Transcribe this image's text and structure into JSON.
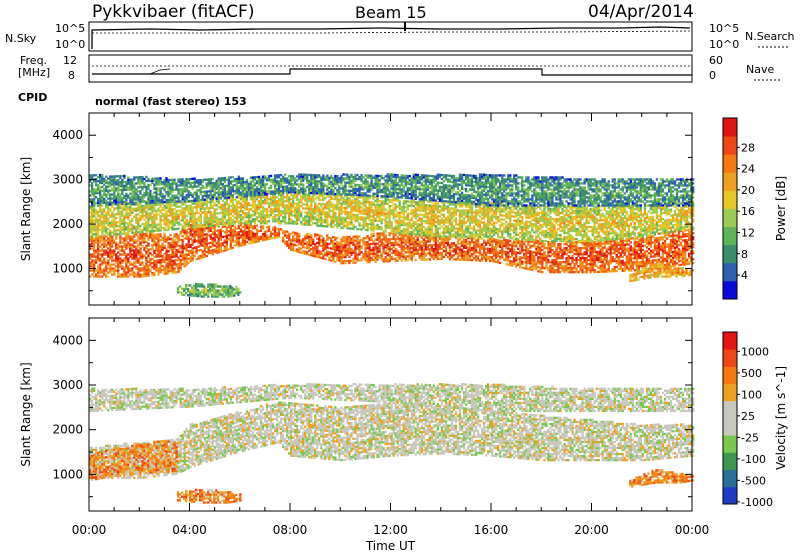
{
  "header": {
    "radar": "Pykkvibaer (fitACF)",
    "beam": "Beam 15",
    "date": "04/Apr/2014"
  },
  "panels": {
    "nsky_label": "N.Sky",
    "nsearch_label": "N.Search",
    "nsky_ticks": [
      "10^5",
      "10^0"
    ],
    "nsearch_ticks": [
      "10^5",
      "10^0"
    ],
    "freq_label_1": "Freq.",
    "freq_label_2": "[MHz]",
    "freq_ticks": [
      "12",
      "8"
    ],
    "nave_label": "Nave",
    "nave_ticks": [
      "60",
      "0"
    ],
    "cpid_label": "CPID",
    "mode_text": "normal (fast stereo) 153"
  },
  "chart_data": [
    {
      "type": "heatmap",
      "name": "power",
      "ylabel": "Slant Range [km]",
      "yticks": [
        "4000",
        "3000",
        "2000",
        "1000"
      ],
      "ylim": [
        180,
        4500
      ],
      "colorbar_label": "Power [dB]",
      "colorbar_ticks": [
        "28",
        "24",
        "20",
        "16",
        "12",
        "8",
        "4"
      ],
      "colorbar_colors": [
        "#0a0adc",
        "#2d5fb4",
        "#3c8c6e",
        "#5fb45a",
        "#9ccc50",
        "#e6c828",
        "#f0a020",
        "#f57814",
        "#f04614",
        "#e01414"
      ],
      "echo_bands": [
        {
          "t": [
            0,
            2,
            3.5,
            4,
            6,
            7.5,
            8,
            10,
            12,
            14,
            16,
            18,
            20,
            22,
            24
          ],
          "lower": [
            800,
            800,
            900,
            1150,
            1500,
            1700,
            1400,
            1100,
            1150,
            1200,
            1150,
            900,
            900,
            950,
            1100
          ],
          "upper": [
            1700,
            1800,
            1750,
            2100,
            2000,
            1900,
            1800,
            1700,
            1800,
            1700,
            1650,
            1600,
            1600,
            1700,
            1900
          ],
          "level": 0.72
        },
        {
          "t": [
            0,
            2,
            4,
            6,
            8,
            10,
            12,
            14,
            16,
            18,
            20,
            22,
            24
          ],
          "lower": [
            1700,
            1800,
            1900,
            2000,
            2000,
            1900,
            1800,
            1700,
            1700,
            1600,
            1600,
            1700,
            1900
          ],
          "upper": [
            2400,
            2500,
            2500,
            2700,
            2800,
            2700,
            2600,
            2500,
            2500,
            2400,
            2400,
            2400,
            2500
          ],
          "level": 0.45
        },
        {
          "t": [
            0,
            4,
            8,
            12,
            16,
            20,
            24
          ],
          "lower": [
            2400,
            2500,
            2700,
            2600,
            2400,
            2400,
            2400
          ],
          "upper": [
            3100,
            3000,
            3100,
            3100,
            3100,
            3000,
            3000
          ],
          "level": 0.2
        },
        {
          "t": [
            3.5,
            4.5,
            5.5,
            6
          ],
          "lower": [
            400,
            350,
            350,
            400
          ],
          "upper": [
            600,
            650,
            600,
            550
          ],
          "level": 0.3
        },
        {
          "t": [
            21.5,
            22.5,
            23.5,
            24
          ],
          "lower": [
            700,
            800,
            800,
            850
          ],
          "upper": [
            850,
            1100,
            1000,
            950
          ],
          "level": 0.55
        }
      ]
    },
    {
      "type": "heatmap",
      "name": "velocity",
      "ylabel": "Slant Range [km]",
      "yticks": [
        "4000",
        "3000",
        "2000",
        "1000"
      ],
      "ylim": [
        180,
        4500
      ],
      "xlabel": "Time UT",
      "xticks": [
        "00:00",
        "04:00",
        "08:00",
        "12:00",
        "16:00",
        "20:00",
        "00:00"
      ],
      "xlim": [
        0,
        24
      ],
      "colorbar_label": "Velocity [m s^-1]",
      "colorbar_ticks": [
        "1000",
        "500",
        "100",
        "25",
        "-25",
        "-100",
        "-500",
        "-1000"
      ],
      "colorbar_colors": [
        "#1e3cc8",
        "#286e96",
        "#3c9650",
        "#78c850",
        "#c8c8be",
        "#c8c8be",
        "#f0a020",
        "#f57814",
        "#f04614",
        "#e61414"
      ],
      "echo_bands": [
        {
          "t": [
            0,
            2,
            3.5,
            4,
            6,
            7.5,
            8,
            10,
            12,
            14,
            16,
            18,
            20,
            22,
            24
          ],
          "lower": [
            900,
            900,
            1000,
            1150,
            1500,
            1700,
            1400,
            1300,
            1400,
            1450,
            1400,
            1300,
            1300,
            1300,
            1400
          ],
          "upper": [
            1600,
            1700,
            1800,
            2100,
            2400,
            2600,
            2600,
            2500,
            2600,
            2500,
            2400,
            2300,
            2200,
            2100,
            2100
          ],
          "level": 0.5
        },
        {
          "t": [
            0,
            1,
            2,
            3,
            3.5
          ],
          "lower": [
            850,
            950,
            1000,
            1050,
            1000
          ],
          "upper": [
            1450,
            1550,
            1650,
            1750,
            1700
          ],
          "level": 0.7
        },
        {
          "t": [
            0,
            4,
            8,
            12,
            16,
            20,
            24
          ],
          "lower": [
            2400,
            2500,
            2700,
            2600,
            2400,
            2400,
            2400
          ],
          "upper": [
            2900,
            2900,
            3000,
            3000,
            3000,
            2900,
            2900
          ],
          "level": 0.48
        },
        {
          "t": [
            3.5,
            4.5,
            5.5,
            6
          ],
          "lower": [
            400,
            350,
            350,
            400
          ],
          "upper": [
            600,
            650,
            600,
            550
          ],
          "level": 0.72
        },
        {
          "t": [
            21.5,
            22.5,
            23.5,
            24
          ],
          "lower": [
            700,
            800,
            800,
            850
          ],
          "upper": [
            850,
            1100,
            1000,
            950
          ],
          "level": 0.72
        }
      ]
    }
  ]
}
